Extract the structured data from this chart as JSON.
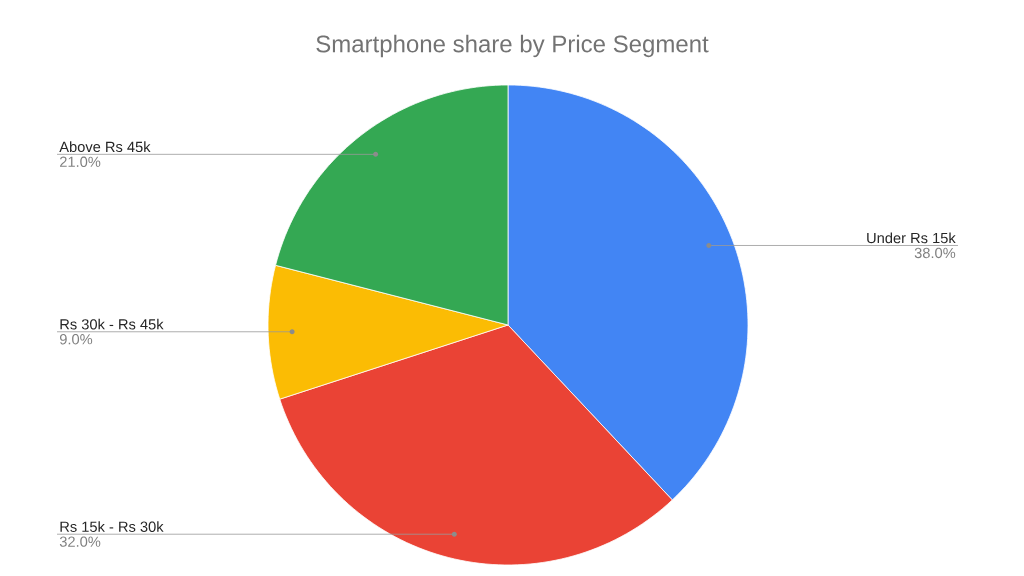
{
  "chart_data": {
    "type": "pie",
    "title": "Smartphone share by Price Segment",
    "categories": [
      "Under Rs 15k",
      "Rs 15k - Rs 30k",
      "Rs 30k - Rs 45k",
      "Above Rs 45k"
    ],
    "values": [
      38,
      32,
      9,
      21
    ],
    "value_labels": [
      "38.0%",
      "32.0%",
      "9.0%",
      "21.0%"
    ],
    "colors": [
      "#4285f4",
      "#ea4335",
      "#fbbc04",
      "#34a853"
    ]
  }
}
